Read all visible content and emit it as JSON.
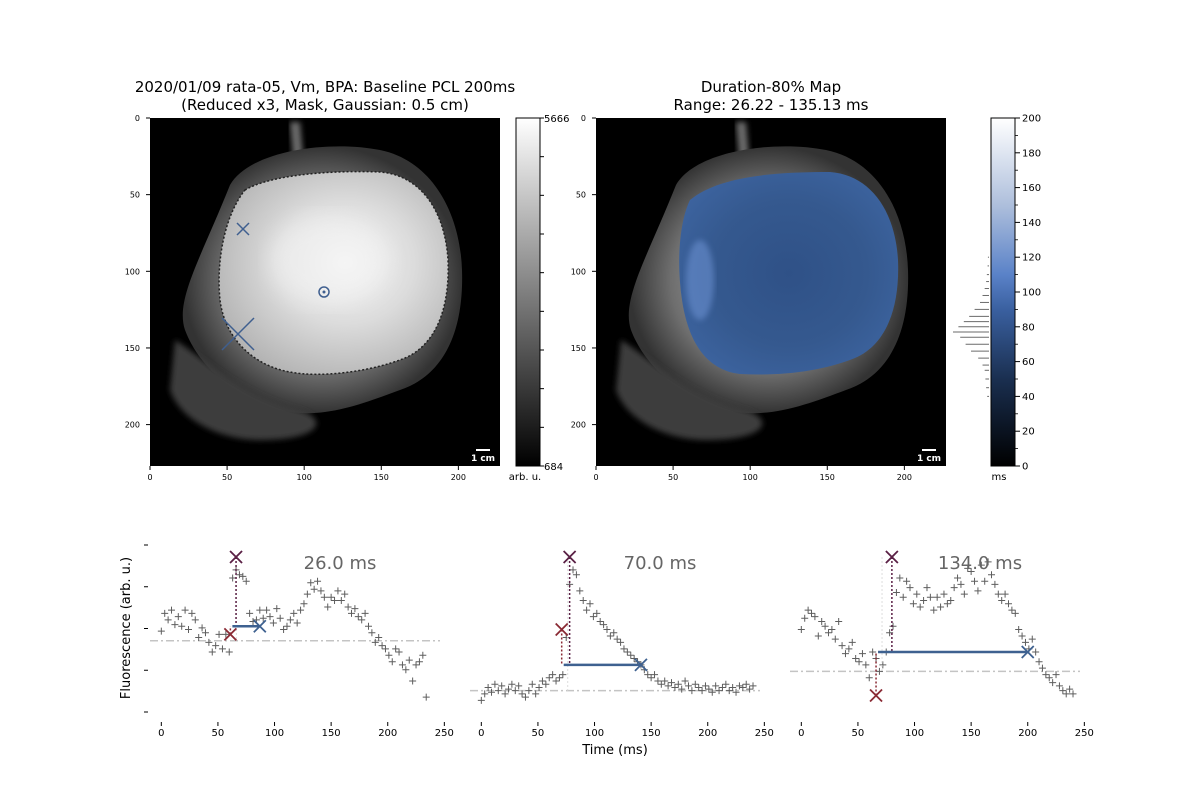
{
  "figure": {
    "left_title_line1": "2020/01/09 rata-05, Vm, BPA: Baseline PCL 200ms",
    "left_title_line2": "(Reduced x3, Mask, Gaussian: 0.5 cm)",
    "right_title_line1": "Duration-80% Map",
    "right_title_line2": "Range: 26.22 - 135.13 ms",
    "scale_bar_label": "1 cm",
    "left_colorbar_units": "arb. u.",
    "right_colorbar_units": "ms",
    "shared_ylabel": "Fluorescence (arb. u.)",
    "shared_xlabel": "Time (ms)"
  },
  "chart_data": [
    {
      "type": "heatmap",
      "name": "fluorescence-image",
      "xlim": [
        0,
        227
      ],
      "ylim": [
        227,
        0
      ],
      "xticks": [
        "0",
        "50",
        "100",
        "150",
        "200"
      ],
      "yticks": [
        "0",
        "50",
        "100",
        "150",
        "200"
      ],
      "colorbar": {
        "min_label": "684",
        "max_label": "5666",
        "colormap": "gray"
      },
      "markers": [
        {
          "kind": "circle",
          "x": 113,
          "y": 113,
          "color": "#3f5f8f"
        },
        {
          "kind": "x-small",
          "x": 60,
          "y": 72,
          "color": "#3f5f8f"
        },
        {
          "kind": "x-large",
          "x": 57,
          "y": 140,
          "color": "#3f5f8f"
        }
      ]
    },
    {
      "type": "heatmap",
      "name": "duration-80-map",
      "xlim": [
        0,
        227
      ],
      "ylim": [
        227,
        0
      ],
      "xticks": [
        "0",
        "50",
        "100",
        "150",
        "200"
      ],
      "yticks": [
        "0",
        "50",
        "100",
        "150",
        "200"
      ],
      "colorbar": {
        "min": 0,
        "max": 200,
        "ticks": [
          "0",
          "20",
          "40",
          "60",
          "80",
          "100",
          "120",
          "140",
          "160",
          "180",
          "200"
        ],
        "colormap": [
          "#000000",
          "#2d4f80",
          "#5a82c8",
          "#ffffff"
        ]
      },
      "histogram": [
        {
          "v": 40,
          "c": 0.05
        },
        {
          "v": 45,
          "c": 0.08
        },
        {
          "v": 50,
          "c": 0.1
        },
        {
          "v": 55,
          "c": 0.12
        },
        {
          "v": 58,
          "c": 0.18
        },
        {
          "v": 62,
          "c": 0.3
        },
        {
          "v": 66,
          "c": 0.5
        },
        {
          "v": 70,
          "c": 0.65
        },
        {
          "v": 74,
          "c": 0.8
        },
        {
          "v": 77,
          "c": 1.0
        },
        {
          "v": 80,
          "c": 0.85
        },
        {
          "v": 83,
          "c": 0.7
        },
        {
          "v": 86,
          "c": 0.55
        },
        {
          "v": 90,
          "c": 0.4
        },
        {
          "v": 94,
          "c": 0.25
        },
        {
          "v": 98,
          "c": 0.18
        },
        {
          "v": 102,
          "c": 0.12
        },
        {
          "v": 106,
          "c": 0.08
        },
        {
          "v": 110,
          "c": 0.06
        },
        {
          "v": 115,
          "c": 0.04
        },
        {
          "v": 120,
          "c": 0.03
        }
      ]
    },
    {
      "type": "scatter",
      "name": "trace-1",
      "label": "26.0 ms",
      "xlim": [
        -10,
        255
      ],
      "xticks": [
        0,
        50,
        100,
        150,
        200,
        250
      ],
      "ylim": [
        0,
        1
      ],
      "baseline": 0.43,
      "peak": {
        "x": 66,
        "y": 0.95
      },
      "act": {
        "x": 61,
        "y": 0.47
      },
      "end": {
        "x": 87,
        "y": 0.52
      },
      "x": [
        0,
        3,
        6,
        9,
        12,
        15,
        18,
        21,
        24,
        27,
        30,
        33,
        36,
        39,
        42,
        45,
        48,
        51,
        54,
        57,
        60,
        63,
        66,
        69,
        72,
        75,
        78,
        81,
        84,
        87,
        90,
        93,
        96,
        99,
        102,
        105,
        108,
        111,
        114,
        117,
        120,
        123,
        126,
        129,
        132,
        135,
        138,
        141,
        144,
        147,
        150,
        153,
        156,
        159,
        162,
        165,
        168,
        171,
        174,
        177,
        180,
        183,
        186,
        189,
        192,
        195,
        198,
        201,
        204,
        207,
        210,
        213,
        216,
        219,
        222,
        225,
        228,
        231,
        234
      ],
      "values": [
        0.49,
        0.6,
        0.56,
        0.62,
        0.53,
        0.58,
        0.52,
        0.62,
        0.5,
        0.6,
        0.56,
        0.45,
        0.51,
        0.48,
        0.42,
        0.36,
        0.4,
        0.47,
        0.38,
        0.47,
        0.36,
        0.82,
        0.87,
        0.84,
        0.83,
        0.8,
        0.6,
        0.55,
        0.56,
        0.62,
        0.57,
        0.62,
        0.58,
        0.54,
        0.63,
        0.57,
        0.5,
        0.52,
        0.56,
        0.6,
        0.54,
        0.62,
        0.66,
        0.72,
        0.79,
        0.75,
        0.8,
        0.74,
        0.7,
        0.64,
        0.7,
        0.68,
        0.74,
        0.68,
        0.72,
        0.64,
        0.6,
        0.63,
        0.58,
        0.56,
        0.6,
        0.52,
        0.48,
        0.42,
        0.45,
        0.4,
        0.38,
        0.34,
        0.3,
        0.38,
        0.36,
        0.28,
        0.25,
        0.31,
        0.18,
        0.28,
        0.3,
        0.34,
        0.08
      ]
    },
    {
      "type": "scatter",
      "name": "trace-2",
      "label": "70.0 ms",
      "xlim": [
        -10,
        255
      ],
      "xticks": [
        0,
        50,
        100,
        150,
        200,
        250
      ],
      "ylim": [
        0,
        1
      ],
      "baseline": 0.12,
      "peak": {
        "x": 78,
        "y": 0.95
      },
      "act": {
        "x": 71,
        "y": 0.5
      },
      "end": {
        "x": 141,
        "y": 0.28
      },
      "x": [
        0,
        3,
        6,
        9,
        12,
        15,
        18,
        21,
        24,
        27,
        30,
        33,
        36,
        39,
        42,
        45,
        48,
        51,
        54,
        57,
        60,
        63,
        66,
        69,
        72,
        75,
        78,
        81,
        84,
        87,
        90,
        93,
        96,
        99,
        102,
        105,
        108,
        111,
        114,
        117,
        120,
        123,
        126,
        129,
        132,
        135,
        138,
        141,
        144,
        147,
        150,
        153,
        156,
        159,
        162,
        165,
        168,
        171,
        174,
        177,
        180,
        183,
        186,
        189,
        192,
        195,
        198,
        201,
        204,
        207,
        210,
        213,
        216,
        219,
        222,
        225,
        228,
        231,
        234,
        237,
        240
      ],
      "values": [
        0.06,
        0.1,
        0.14,
        0.11,
        0.16,
        0.12,
        0.15,
        0.1,
        0.13,
        0.16,
        0.12,
        0.15,
        0.1,
        0.08,
        0.12,
        0.16,
        0.1,
        0.14,
        0.18,
        0.16,
        0.2,
        0.22,
        0.18,
        0.2,
        0.22,
        0.45,
        0.78,
        0.87,
        0.84,
        0.74,
        0.68,
        0.62,
        0.66,
        0.58,
        0.6,
        0.55,
        0.53,
        0.5,
        0.46,
        0.48,
        0.44,
        0.42,
        0.38,
        0.36,
        0.34,
        0.32,
        0.3,
        0.28,
        0.25,
        0.22,
        0.2,
        0.22,
        0.18,
        0.16,
        0.18,
        0.15,
        0.17,
        0.14,
        0.16,
        0.13,
        0.18,
        0.15,
        0.12,
        0.16,
        0.14,
        0.12,
        0.15,
        0.13,
        0.11,
        0.15,
        0.12,
        0.14,
        0.16,
        0.12,
        0.14,
        0.11,
        0.15,
        0.14,
        0.16,
        0.13,
        0.15
      ]
    },
    {
      "type": "scatter",
      "name": "trace-3",
      "label": "134.0 ms",
      "xlim": [
        -10,
        255
      ],
      "xticks": [
        0,
        50,
        100,
        150,
        200,
        250
      ],
      "ylim": [
        0,
        1
      ],
      "baseline": 0.24,
      "peak": {
        "x": 80,
        "y": 0.95
      },
      "act": {
        "x": 66,
        "y": 0.09
      },
      "end": {
        "x": 200,
        "y": 0.36
      },
      "x": [
        0,
        3,
        6,
        9,
        12,
        15,
        18,
        21,
        24,
        27,
        30,
        33,
        36,
        39,
        42,
        45,
        48,
        51,
        54,
        57,
        60,
        63,
        66,
        69,
        72,
        75,
        78,
        81,
        84,
        87,
        90,
        93,
        96,
        99,
        102,
        105,
        108,
        111,
        114,
        117,
        120,
        123,
        126,
        129,
        132,
        135,
        138,
        141,
        144,
        147,
        150,
        153,
        156,
        159,
        162,
        165,
        168,
        171,
        174,
        177,
        180,
        183,
        186,
        189,
        192,
        195,
        198,
        201,
        204,
        207,
        210,
        213,
        216,
        219,
        222,
        225,
        228,
        231,
        234,
        237,
        240
      ],
      "values": [
        0.5,
        0.57,
        0.62,
        0.6,
        0.58,
        0.46,
        0.55,
        0.52,
        0.48,
        0.5,
        0.44,
        0.55,
        0.4,
        0.35,
        0.38,
        0.42,
        0.32,
        0.3,
        0.35,
        0.28,
        0.2,
        0.36,
        0.32,
        0.24,
        0.28,
        0.36,
        0.48,
        0.52,
        0.73,
        0.82,
        0.7,
        0.8,
        0.76,
        0.66,
        0.72,
        0.64,
        0.68,
        0.76,
        0.7,
        0.62,
        0.7,
        0.64,
        0.72,
        0.66,
        0.68,
        0.76,
        0.82,
        0.78,
        0.72,
        0.88,
        0.86,
        0.8,
        0.74,
        0.9,
        0.8,
        0.92,
        0.84,
        0.78,
        0.72,
        0.68,
        0.72,
        0.66,
        0.62,
        0.6,
        0.5,
        0.46,
        0.42,
        0.38,
        0.44,
        0.36,
        0.3,
        0.26,
        0.22,
        0.2,
        0.17,
        0.22,
        0.15,
        0.12,
        0.1,
        0.13,
        0.1
      ]
    }
  ]
}
